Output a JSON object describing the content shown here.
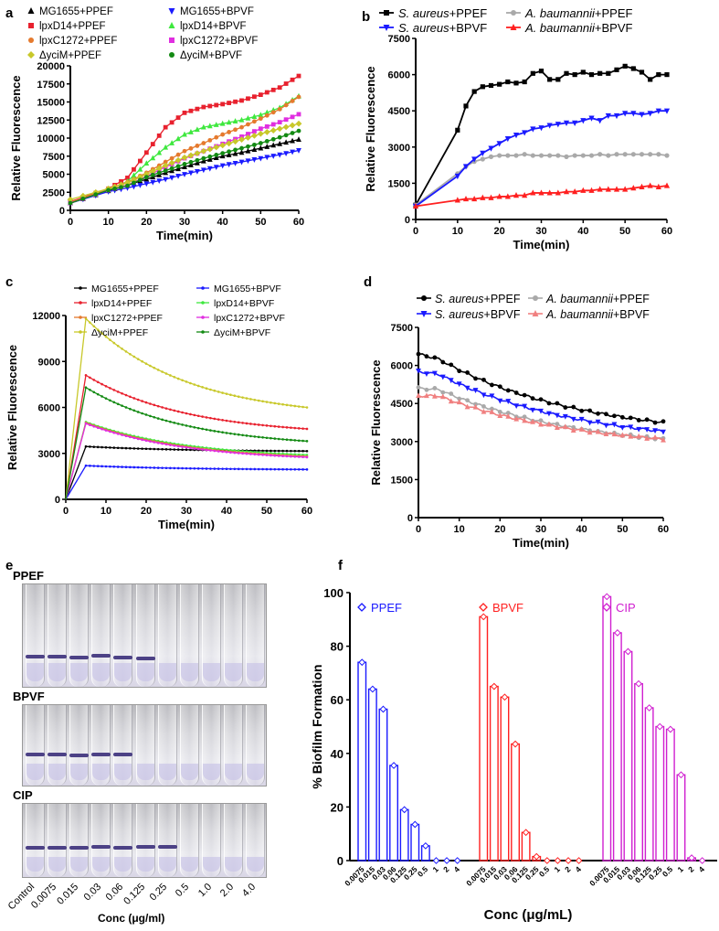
{
  "panels": {
    "a": "a",
    "b": "b",
    "c": "c",
    "d": "d",
    "e": "e",
    "f": "f"
  },
  "colors": {
    "MG1655_PPEF": "#000000",
    "MG1655_BPVF": "#1a1aff",
    "lpxD14_PPEF": "#e8212e",
    "lpxD14_BPVF": "#3ee83e",
    "lpxC1272_PPEF": "#e57a2e",
    "lpxC1272_BPVF": "#e02ee0",
    "yciM_PPEF": "#c8c82a",
    "yciM_BPVF": "#138a13",
    "saureus_PPEF": "#000000",
    "abaum_PPEF": "#a9a9a9",
    "saureus_BPVF": "#1a1aff",
    "abaum_BPVF": "#ff2020",
    "abaum_BPVF_d": "#f08080",
    "PPEF": "#1a1aff",
    "BPVF": "#ff2020",
    "CIP": "#d020d0"
  },
  "panel_e": {
    "rows": [
      "PPEF",
      "BPVF",
      "CIP"
    ],
    "xlabels": [
      "Control",
      "0.0075",
      "0.015",
      "0.03",
      "0.06",
      "0.125",
      "0.25",
      "0.5",
      "1.0",
      "2.0",
      "4.0"
    ],
    "xtitle": "Conc (μg/ml)"
  },
  "chart_data": [
    {
      "id": "a",
      "type": "line",
      "title": "",
      "xlabel": "Time(min)",
      "ylabel": "Relative Fluorescence",
      "xlim": [
        0,
        60
      ],
      "ylim": [
        0,
        20000
      ],
      "xticks": [
        0,
        10,
        20,
        30,
        40,
        50,
        60
      ],
      "yticks": [
        0,
        2500,
        5000,
        7500,
        10000,
        12500,
        15000,
        17500,
        20000
      ],
      "legend": [
        "MG1655+PPEF",
        "MG1655+BPVF",
        "lpxD14+PPEF",
        "lpxD14+BPVF",
        "lpxC1272+PPEF",
        "lpxC1272+BPVF",
        "ΔyciM+PPEF",
        "ΔyciM+BPVF"
      ],
      "x": [
        0,
        10,
        15,
        20,
        25,
        30,
        35,
        40,
        45,
        50,
        55,
        60
      ],
      "series": [
        {
          "name": "MG1655+PPEF",
          "key": "MG1655_PPEF",
          "marker": "triangle",
          "values": [
            1000,
            2700,
            3500,
            4300,
            5200,
            6000,
            6800,
            7500,
            8000,
            8600,
            9200,
            9800
          ]
        },
        {
          "name": "MG1655+BPVF",
          "key": "MG1655_BPVF",
          "marker": "itriangle",
          "values": [
            1000,
            2600,
            3100,
            3700,
            4300,
            5000,
            5600,
            6200,
            6700,
            7200,
            7700,
            8300
          ]
        },
        {
          "name": "lpxD14+PPEF",
          "key": "lpxD14_PPEF",
          "marker": "square",
          "values": [
            1200,
            3000,
            4500,
            8000,
            11500,
            13500,
            14300,
            14700,
            15200,
            16000,
            17000,
            18600
          ]
        },
        {
          "name": "lpxD14+BPVF",
          "key": "lpxD14_BPVF",
          "marker": "triangle",
          "values": [
            1100,
            2800,
            4000,
            6500,
            8700,
            10500,
            11500,
            12000,
            12500,
            13200,
            14200,
            15800
          ]
        },
        {
          "name": "lpxC1272+PPEF",
          "key": "lpxC1272_PPEF",
          "marker": "circle",
          "values": [
            1100,
            3000,
            3900,
            5200,
            6700,
            8200,
            9300,
            10500,
            11500,
            12700,
            14000,
            15700
          ]
        },
        {
          "name": "lpxC1272+BPVF",
          "key": "lpxC1272_BPVF",
          "marker": "square",
          "values": [
            1000,
            2800,
            3500,
            4700,
            6000,
            7200,
            8200,
            9200,
            10200,
            11300,
            12200,
            13300
          ]
        },
        {
          "name": "ΔyciM+PPEF",
          "key": "yciM_PPEF",
          "marker": "diamond",
          "values": [
            1500,
            3000,
            3800,
            5000,
            6200,
            7300,
            8200,
            9000,
            9800,
            10600,
            11300,
            12000
          ]
        },
        {
          "name": "ΔyciM+BPVF",
          "key": "yciM_BPVF",
          "marker": "circle",
          "values": [
            1000,
            2800,
            3400,
            4600,
            5500,
            6400,
            7200,
            7900,
            8600,
            9300,
            10100,
            11000
          ]
        }
      ]
    },
    {
      "id": "b",
      "type": "line",
      "title": "",
      "xlabel": "Time(min)",
      "ylabel": "Relative Fluorescence",
      "xlim": [
        0,
        60
      ],
      "ylim": [
        0,
        7500
      ],
      "xticks": [
        0,
        10,
        20,
        30,
        40,
        50,
        60
      ],
      "yticks": [
        0,
        1500,
        3000,
        4500,
        6000,
        7500
      ],
      "legend": [
        "S. aureus+PPEF",
        "A. baumannii+PPEF",
        "S. aureus+BPVF",
        "A. baumannii+BPVF"
      ],
      "x": [
        0,
        10,
        12,
        14,
        16,
        18,
        20,
        22,
        24,
        26,
        28,
        30,
        32,
        34,
        36,
        38,
        40,
        42,
        44,
        46,
        48,
        50,
        52,
        54,
        56,
        58,
        60
      ],
      "series": [
        {
          "name": "S. aureus+PPEF",
          "key": "saureus_PPEF",
          "marker": "square",
          "values": [
            600,
            3700,
            4700,
            5300,
            5500,
            5550,
            5600,
            5700,
            5650,
            5700,
            6050,
            6150,
            5800,
            5800,
            6050,
            6000,
            6100,
            6000,
            6050,
            6050,
            6200,
            6350,
            6250,
            6100,
            5800,
            6000,
            6000
          ]
        },
        {
          "name": "A. baumannii+PPEF",
          "key": "abaum_PPEF",
          "marker": "circle",
          "values": [
            600,
            1900,
            2200,
            2400,
            2500,
            2600,
            2650,
            2650,
            2650,
            2700,
            2650,
            2650,
            2650,
            2650,
            2600,
            2650,
            2650,
            2650,
            2700,
            2650,
            2700,
            2700,
            2700,
            2700,
            2700,
            2700,
            2650
          ]
        },
        {
          "name": "S. aureus+BPVF",
          "key": "saureus_BPVF",
          "marker": "itriangle",
          "values": [
            550,
            1800,
            2200,
            2500,
            2750,
            2950,
            3150,
            3350,
            3500,
            3600,
            3750,
            3800,
            3900,
            3950,
            4000,
            4000,
            4100,
            4200,
            4100,
            4300,
            4300,
            4400,
            4400,
            4350,
            4400,
            4500,
            4500
          ]
        },
        {
          "name": "A. baumannii+BPVF",
          "key": "abaum_BPVF",
          "marker": "triangle",
          "values": [
            550,
            800,
            850,
            850,
            900,
            900,
            950,
            950,
            1000,
            1000,
            1100,
            1100,
            1100,
            1100,
            1150,
            1150,
            1200,
            1200,
            1250,
            1250,
            1250,
            1250,
            1300,
            1350,
            1400,
            1350,
            1400
          ]
        }
      ]
    },
    {
      "id": "c",
      "type": "line",
      "title": "",
      "xlabel": "Time(min)",
      "ylabel": "Relative Fluorescence",
      "xlim": [
        0,
        60
      ],
      "ylim": [
        0,
        12000
      ],
      "xticks": [
        0,
        10,
        20,
        30,
        40,
        50,
        60
      ],
      "yticks": [
        0,
        3000,
        6000,
        9000,
        12000
      ],
      "legend": [
        "MG1655+PPEF",
        "MG1655+BPVF",
        "lpxD14+PPEF",
        "lpxD14+BPVF",
        "lpxC1272+PPEF",
        "lpxC1272+BPVF",
        "ΔyciM+PPEF",
        "ΔyciM+BPVF"
      ],
      "decay": true,
      "series": [
        {
          "name": "MG1655+PPEF",
          "key": "MG1655_PPEF",
          "peak": 3450,
          "end": 3150
        },
        {
          "name": "MG1655+BPVF",
          "key": "MG1655_BPVF",
          "peak": 2200,
          "end": 1950
        },
        {
          "name": "lpxD14+PPEF",
          "key": "lpxD14_PPEF",
          "peak": 8100,
          "end": 4600
        },
        {
          "name": "lpxD14+BPVF",
          "key": "lpxD14_BPVF",
          "peak": 5050,
          "end": 2900
        },
        {
          "name": "lpxC1272+PPEF",
          "key": "lpxC1272_PPEF",
          "peak": 5000,
          "end": 2800
        },
        {
          "name": "lpxC1272+BPVF",
          "key": "lpxC1272_BPVF",
          "peak": 4950,
          "end": 2750
        },
        {
          "name": "ΔyciM+PPEF",
          "key": "yciM_PPEF",
          "peak": 11800,
          "end": 6000
        },
        {
          "name": "ΔyciM+BPVF",
          "key": "yciM_BPVF",
          "peak": 7300,
          "end": 3800
        }
      ]
    },
    {
      "id": "d",
      "type": "line",
      "title": "",
      "xlabel": "Time(min)",
      "ylabel": "Relative Fluorescence",
      "xlim": [
        0,
        60
      ],
      "ylim": [
        0,
        7500
      ],
      "xticks": [
        0,
        10,
        20,
        30,
        40,
        50,
        60
      ],
      "yticks": [
        0,
        1500,
        3000,
        4500,
        6000,
        7500
      ],
      "legend": [
        "S. aureus+PPEF",
        "A. baumannii+PPEF",
        "S. aureus+BPVF",
        "A. baumannii+BPVF"
      ],
      "decay": true,
      "series": [
        {
          "name": "S. aureus+PPEF",
          "key": "saureus_PPEF",
          "start": 6450,
          "peak": 6250,
          "end": 3750
        },
        {
          "name": "A. baumannii+PPEF",
          "key": "abaum_PPEF",
          "start": 5100,
          "peak": 5050,
          "end": 3100
        },
        {
          "name": "S. aureus+BPVF",
          "key": "saureus_BPVF",
          "start": 5750,
          "peak": 5650,
          "end": 3400
        },
        {
          "name": "A. baumannii+BPVF",
          "key": "abaum_BPVF_d",
          "start": 4800,
          "peak": 4800,
          "end": 3100
        }
      ]
    },
    {
      "id": "f",
      "type": "bar",
      "title": "",
      "xlabel": "Conc (μg/mL)",
      "ylabel": "% Biofilm Formation",
      "ylim": [
        0,
        100
      ],
      "yticks": [
        0,
        20,
        40,
        60,
        80,
        100
      ],
      "legend": [
        "PPEF",
        "BPVF",
        "CIP"
      ],
      "categories": [
        "0.0075",
        "0.015",
        "0.03",
        "0.06",
        "0.125",
        "0.25",
        "0.5",
        "1",
        "2",
        "4"
      ],
      "series": [
        {
          "name": "PPEF",
          "key": "PPEF",
          "values": [
            74,
            64,
            56.5,
            35.5,
            19,
            13.5,
            5.5,
            0,
            0,
            0
          ]
        },
        {
          "name": "BPVF",
          "key": "BPVF",
          "values": [
            91,
            65,
            61,
            43.5,
            10.5,
            1.5,
            0,
            0,
            0,
            0
          ]
        },
        {
          "name": "CIP",
          "key": "CIP",
          "values": [
            98.5,
            85,
            78,
            66,
            57,
            50,
            49,
            32,
            1,
            0
          ]
        }
      ]
    }
  ]
}
